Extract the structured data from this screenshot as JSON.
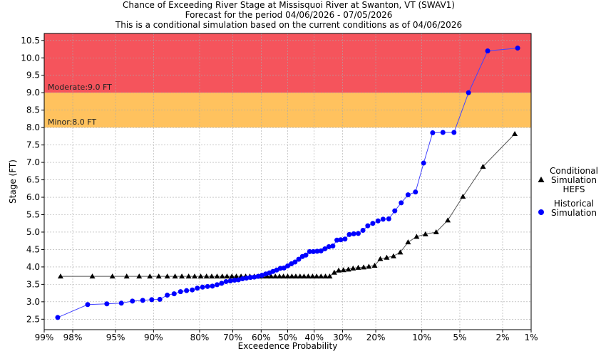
{
  "chart_data": {
    "type": "scatter",
    "title": "Chance of Exceeding River Stage at Missisquoi River at Swanton, VT (SWAV1)",
    "subtitle": "Forecast for the period 04/06/2026 - 07/05/2026",
    "subtitle2": "This is a conditional simulation based on the current conditions as of 04/06/2026",
    "xlabel": "Exceedence Probability",
    "ylabel": "Stage (FT)",
    "x_scale": "probit",
    "x_ticks": [
      99,
      98,
      95,
      90,
      80,
      70,
      60,
      50,
      40,
      30,
      20,
      10,
      5,
      2,
      1
    ],
    "x_tick_labels": [
      "99%",
      "98%",
      "95%",
      "90%",
      "80%",
      "70%",
      "60%",
      "50%",
      "40%",
      "30%",
      "20%",
      "10%",
      "5%",
      "2%",
      "1%"
    ],
    "ylim": [
      2.2,
      10.7
    ],
    "y_ticks": [
      2.5,
      3.0,
      3.5,
      4.0,
      4.5,
      5.0,
      5.5,
      6.0,
      6.5,
      7.0,
      7.5,
      8.0,
      8.5,
      9.0,
      9.5,
      10.0,
      10.5
    ],
    "y_tick_labels": [
      "2.5",
      "3.0",
      "3.5",
      "4.0",
      "4.5",
      "5.0",
      "5.5",
      "6.0",
      "6.5",
      "7.0",
      "7.5",
      "8.0",
      "8.5",
      "9.0",
      "9.5",
      "10.0",
      "10.5"
    ],
    "grid": true,
    "legend_position": "right",
    "bands": [
      {
        "label": "Minor:8.0 FT",
        "from": 8.0,
        "to": 9.0,
        "color": "#ffc25e"
      },
      {
        "label": "Moderate:9.0 FT",
        "from": 9.0,
        "to": 10.7,
        "color": "#f5545c"
      }
    ],
    "series": [
      {
        "name": "Conditional Simulation HEFS",
        "marker": "triangle",
        "color": "#000000",
        "line_color": "#555555",
        "x": [
          98.5,
          96.9,
          95.3,
          93.8,
          92.2,
          90.6,
          89.1,
          87.5,
          85.9,
          84.4,
          82.8,
          81.3,
          79.7,
          78.1,
          76.6,
          75.0,
          73.4,
          71.9,
          70.3,
          68.8,
          67.2,
          65.6,
          64.1,
          62.5,
          60.9,
          59.4,
          57.8,
          56.3,
          54.7,
          53.1,
          51.6,
          50.0,
          48.4,
          46.9,
          45.3,
          43.8,
          42.2,
          40.6,
          39.1,
          37.5,
          35.9,
          34.4,
          32.8,
          31.3,
          29.7,
          28.1,
          26.6,
          25.0,
          23.4,
          21.9,
          20.3,
          18.8,
          17.2,
          15.6,
          14.1,
          12.5,
          10.9,
          9.4,
          7.8,
          6.3,
          4.7,
          3.1,
          1.5
        ],
        "y": [
          3.73,
          3.73,
          3.73,
          3.73,
          3.73,
          3.73,
          3.73,
          3.73,
          3.73,
          3.73,
          3.73,
          3.73,
          3.73,
          3.73,
          3.73,
          3.73,
          3.73,
          3.73,
          3.73,
          3.73,
          3.73,
          3.73,
          3.73,
          3.73,
          3.73,
          3.73,
          3.73,
          3.73,
          3.73,
          3.73,
          3.73,
          3.73,
          3.73,
          3.73,
          3.73,
          3.73,
          3.73,
          3.73,
          3.73,
          3.73,
          3.73,
          3.73,
          3.84,
          3.9,
          3.91,
          3.93,
          3.96,
          3.98,
          3.99,
          4.01,
          4.04,
          4.23,
          4.27,
          4.31,
          4.42,
          4.71,
          4.87,
          4.94,
          5.0,
          5.34,
          6.02,
          6.88,
          7.82
        ]
      },
      {
        "name": "Historical Simulation",
        "marker": "circle",
        "color": "#0000ff",
        "line_color": "#4444ff",
        "x": [
          98.6,
          97.2,
          95.8,
          94.4,
          93.1,
          91.7,
          90.3,
          88.9,
          87.5,
          86.1,
          84.7,
          83.3,
          81.9,
          80.6,
          79.2,
          77.8,
          76.4,
          75.0,
          73.6,
          72.2,
          70.8,
          69.4,
          68.1,
          66.7,
          65.3,
          63.9,
          62.5,
          61.1,
          59.7,
          58.3,
          56.9,
          55.6,
          54.2,
          52.8,
          51.4,
          50.0,
          48.6,
          47.2,
          45.8,
          44.4,
          43.1,
          41.7,
          40.3,
          38.9,
          37.5,
          36.1,
          34.7,
          33.3,
          31.9,
          30.6,
          29.2,
          27.8,
          26.4,
          25.0,
          23.6,
          22.2,
          20.8,
          19.4,
          18.1,
          16.7,
          15.3,
          13.9,
          12.5,
          11.1,
          9.7,
          8.3,
          6.9,
          5.6,
          4.2,
          2.8,
          1.4
        ],
        "y": [
          2.55,
          2.92,
          2.94,
          2.96,
          3.02,
          3.04,
          3.06,
          3.07,
          3.19,
          3.23,
          3.29,
          3.32,
          3.34,
          3.39,
          3.42,
          3.44,
          3.45,
          3.49,
          3.53,
          3.58,
          3.6,
          3.62,
          3.63,
          3.66,
          3.68,
          3.7,
          3.71,
          3.73,
          3.76,
          3.8,
          3.83,
          3.87,
          3.91,
          3.96,
          3.97,
          4.03,
          4.09,
          4.14,
          4.22,
          4.3,
          4.34,
          4.44,
          4.44,
          4.45,
          4.46,
          4.52,
          4.58,
          4.6,
          4.77,
          4.78,
          4.8,
          4.93,
          4.95,
          4.96,
          5.05,
          5.18,
          5.25,
          5.32,
          5.37,
          5.38,
          5.61,
          5.84,
          6.07,
          6.15,
          6.98,
          7.85,
          7.86,
          7.86,
          9.0,
          10.2,
          10.28
        ]
      }
    ]
  }
}
